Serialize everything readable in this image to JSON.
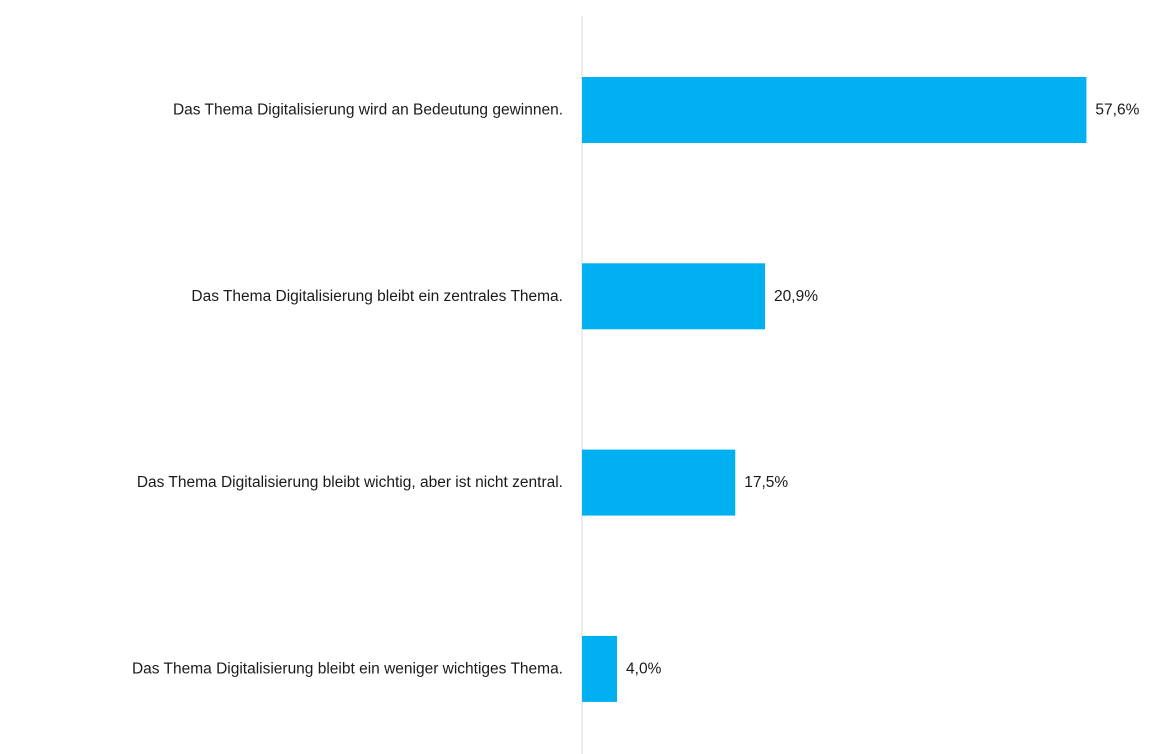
{
  "chart_data": {
    "type": "bar",
    "orientation": "horizontal",
    "categories": [
      "Das Thema Digitalisierung wird an Bedeutung gewinnen.",
      "Das Thema Digitalisierung bleibt ein zentrales Thema.",
      "Das Thema Digitalisierung bleibt wichtig, aber ist nicht zentral.",
      "Das Thema Digitalisierung bleibt ein weniger wichtiges Thema."
    ],
    "values": [
      57.6,
      20.9,
      17.5,
      4.0
    ],
    "value_labels": [
      "57,6%",
      "20,9%",
      "17,5%",
      "4,0%"
    ],
    "bar_color": "#00b0f0",
    "axis_color": "#d9d9d9",
    "xlim": [
      0,
      66
    ],
    "grid": false,
    "legend": "none"
  }
}
